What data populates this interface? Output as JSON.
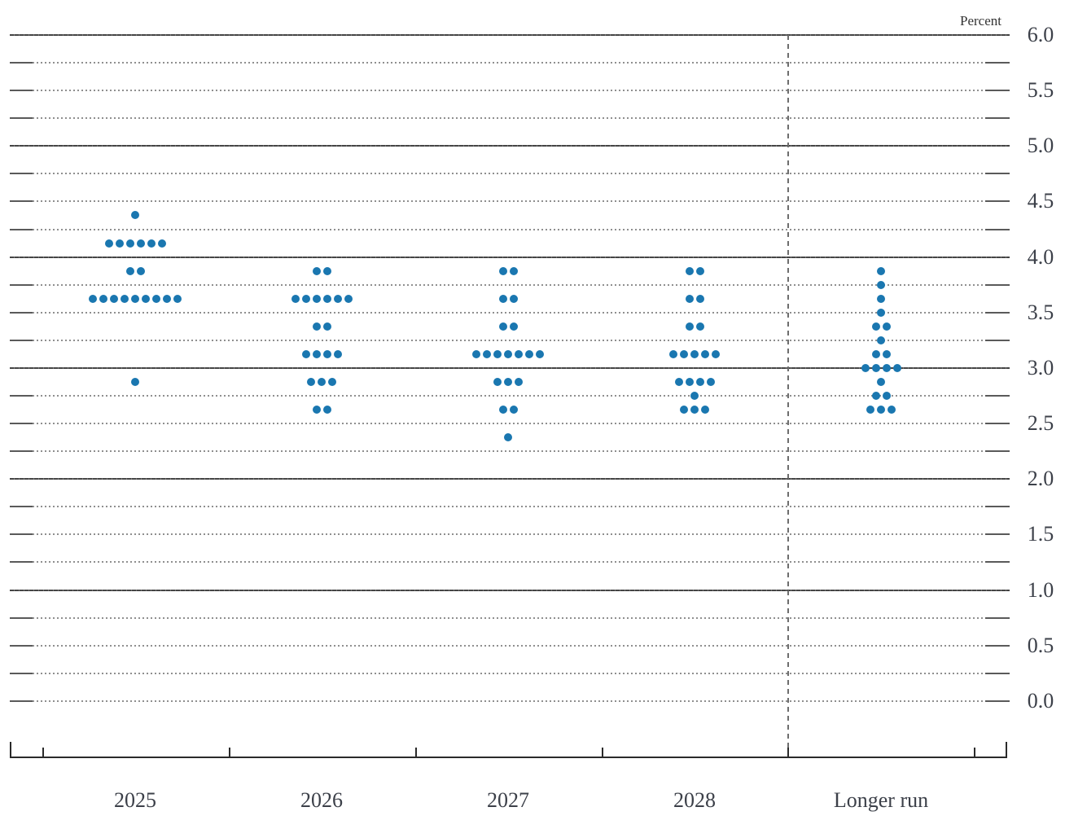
{
  "chart_data": {
    "type": "scatter",
    "variant": "fomc-dot-plot",
    "title": "",
    "xlabel": "",
    "ylabel": "Percent",
    "categories": [
      "2025",
      "2026",
      "2027",
      "2028",
      "Longer run"
    ],
    "y_axis": {
      "min": 0.0,
      "max": 6.0,
      "label_step": 0.5,
      "grid_step": 0.25,
      "tick_labels": [
        "6.0",
        "5.5",
        "5.0",
        "4.5",
        "4.0",
        "3.5",
        "3.0",
        "2.5",
        "2.0",
        "1.5",
        "1.0",
        "0.5",
        "0.0"
      ],
      "dark_lines_at": [
        6.0,
        5.0,
        4.0,
        3.0,
        2.0,
        1.0
      ]
    },
    "layout": {
      "grid": "horizontal dotted lines every 0.25, darker lines at whole percents",
      "separator": "vertical dashed line between 2028 and Longer run",
      "legend": "none",
      "y_labels_position": "right"
    },
    "series": [
      {
        "name": "2025",
        "points": [
          {
            "rate": 4.375,
            "count": 1
          },
          {
            "rate": 4.125,
            "count": 6
          },
          {
            "rate": 3.875,
            "count": 2
          },
          {
            "rate": 3.625,
            "count": 9
          },
          {
            "rate": 2.875,
            "count": 1
          }
        ]
      },
      {
        "name": "2026",
        "points": [
          {
            "rate": 3.875,
            "count": 2
          },
          {
            "rate": 3.625,
            "count": 6
          },
          {
            "rate": 3.375,
            "count": 2
          },
          {
            "rate": 3.125,
            "count": 4
          },
          {
            "rate": 2.875,
            "count": 3
          },
          {
            "rate": 2.625,
            "count": 2
          }
        ]
      },
      {
        "name": "2027",
        "points": [
          {
            "rate": 3.875,
            "count": 2
          },
          {
            "rate": 3.625,
            "count": 2
          },
          {
            "rate": 3.375,
            "count": 2
          },
          {
            "rate": 3.125,
            "count": 7
          },
          {
            "rate": 2.875,
            "count": 3
          },
          {
            "rate": 2.625,
            "count": 2
          },
          {
            "rate": 2.375,
            "count": 1
          }
        ]
      },
      {
        "name": "2028",
        "points": [
          {
            "rate": 3.875,
            "count": 2
          },
          {
            "rate": 3.625,
            "count": 2
          },
          {
            "rate": 3.375,
            "count": 2
          },
          {
            "rate": 3.125,
            "count": 5
          },
          {
            "rate": 2.875,
            "count": 4
          },
          {
            "rate": 2.75,
            "count": 1
          },
          {
            "rate": 2.625,
            "count": 3
          }
        ]
      },
      {
        "name": "Longer run",
        "points": [
          {
            "rate": 3.875,
            "count": 1
          },
          {
            "rate": 3.75,
            "count": 1
          },
          {
            "rate": 3.625,
            "count": 1
          },
          {
            "rate": 3.5,
            "count": 1
          },
          {
            "rate": 3.375,
            "count": 2
          },
          {
            "rate": 3.25,
            "count": 1
          },
          {
            "rate": 3.125,
            "count": 2
          },
          {
            "rate": 3.0,
            "count": 4
          },
          {
            "rate": 2.875,
            "count": 1
          },
          {
            "rate": 2.75,
            "count": 2
          },
          {
            "rate": 2.625,
            "count": 3
          }
        ]
      }
    ],
    "colors": {
      "dot": "#1a77b0",
      "grid_dark": "#454545",
      "grid_dotted": "#8f8f8f",
      "axis": "#2a2a2a",
      "separator": "#6e6e6e",
      "labels": "#3c4049"
    }
  }
}
